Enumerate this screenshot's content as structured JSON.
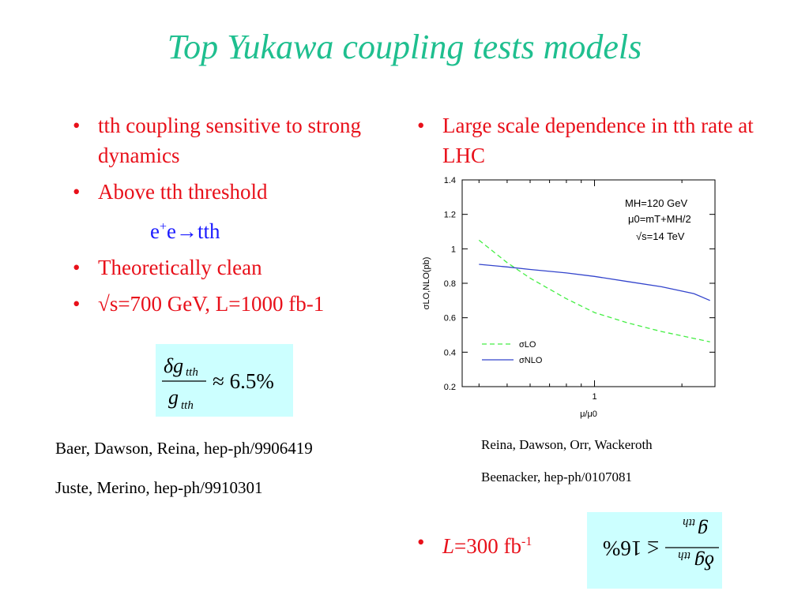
{
  "slide": {
    "title": "Top Yukawa coupling tests models",
    "left_bullets": [
      "tth coupling sensitive to strong dynamics",
      "Above tth threshold",
      "Theoretically clean",
      "√s=700 GeV, L=1000 fb-1"
    ],
    "indent_line": {
      "base": "e",
      "sup": "+",
      "rest": "e→tth"
    },
    "formula_left": {
      "num": "δg",
      "sub": "tth",
      "den": "g",
      "rhs": "≈ 6.5%"
    },
    "formula_right": {
      "num": "g",
      "sub": "tth",
      "den": "δg",
      "rhs": "≤ 16%"
    },
    "refs_left": [
      "Baer, Dawson, Reina, hep-ph/9906419",
      "Juste, Merino, hep-ph/9910301"
    ],
    "right_bullets": [
      "Large scale dependence in tth rate at LHC"
    ],
    "refs_right": [
      "Reina, Dawson, Orr, Wackeroth",
      "Beenacker, hep-ph/0107081"
    ],
    "bottom_bullet": {
      "italic": "L",
      "text": "=300 fb",
      "sup": "-1"
    }
  },
  "chart_data": {
    "type": "line",
    "xscale": "log",
    "xlabel": "μ/μ0",
    "ylabel": "σLO,NLO(pb)",
    "xlim": [
      0.35,
      2.6
    ],
    "ylim": [
      0.2,
      1.4
    ],
    "yticks": [
      "0.2",
      "0.4",
      "0.6",
      "0.8",
      "1",
      "1.2",
      "1.4"
    ],
    "xtick_labels": [
      "1"
    ],
    "annotation_lines": [
      "MH=120 GeV",
      "μ0=mT+MH/2",
      "√s=14 TeV"
    ],
    "legend_position": "bottom-left",
    "series": [
      {
        "name": "σLO",
        "style": "dashed",
        "color": "#44ee44",
        "x": [
          0.4,
          0.5,
          0.6,
          0.8,
          1.0,
          1.3,
          1.7,
          2.2,
          2.5
        ],
        "y": [
          1.05,
          0.92,
          0.83,
          0.71,
          0.63,
          0.57,
          0.52,
          0.48,
          0.46
        ]
      },
      {
        "name": "σNLO",
        "style": "solid",
        "color": "#3344cc",
        "x": [
          0.4,
          0.5,
          0.6,
          0.8,
          1.0,
          1.3,
          1.7,
          2.2,
          2.5
        ],
        "y": [
          0.91,
          0.895,
          0.88,
          0.86,
          0.84,
          0.81,
          0.78,
          0.74,
          0.7
        ]
      }
    ]
  }
}
